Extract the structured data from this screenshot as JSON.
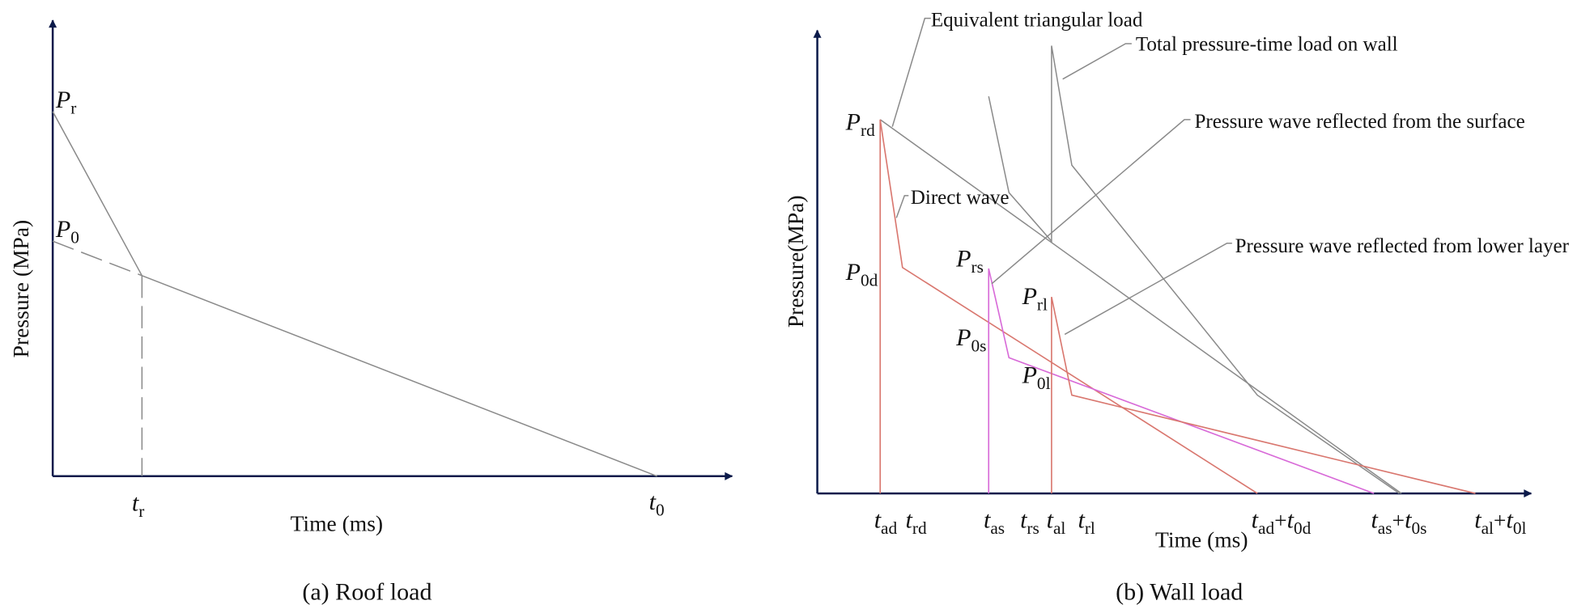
{
  "panel_a": {
    "caption": "(a) Roof load",
    "y_axis_label": "Pressure (MPa)",
    "x_axis_label": "Time (ms)",
    "labels": [
      {
        "base": "P",
        "sub": "r"
      },
      {
        "base": "P",
        "sub": "0"
      },
      {
        "base": "t",
        "sub": "r"
      },
      {
        "base": "t",
        "sub": "0"
      }
    ]
  },
  "panel_b": {
    "caption": "(b) Wall load",
    "y_axis_label": "Pressure(MPa)",
    "x_axis_label": "Time (ms)",
    "annotations": [
      "Equivalent triangular load",
      "Total pressure-time load on wall",
      "Pressure wave reflected from the surface",
      "Direct wave",
      "Pressure wave reflected from lower layer"
    ],
    "pressure_labels": [
      {
        "base": "P",
        "sub": "rd"
      },
      {
        "base": "P",
        "sub": "0d"
      },
      {
        "base": "P",
        "sub": "rs"
      },
      {
        "base": "P",
        "sub": "0s"
      },
      {
        "base": "P",
        "sub": "rl"
      },
      {
        "base": "P",
        "sub": "0l"
      }
    ],
    "time_labels": [
      {
        "base": "t",
        "sub": "ad"
      },
      {
        "base": "t",
        "sub": "rd"
      },
      {
        "base": "t",
        "sub": "as"
      },
      {
        "base": "t",
        "sub": "rs"
      },
      {
        "base": "t",
        "sub": "al"
      },
      {
        "base": "t",
        "sub": "rl"
      },
      {
        "base": "t",
        "sub": "ad",
        "plus": "+",
        "base2": "t",
        "sub2": "0d"
      },
      {
        "base": "t",
        "sub": "as",
        "plus": "+",
        "base2": "t",
        "sub2": "0s"
      },
      {
        "base": "t",
        "sub": "al",
        "plus": "+",
        "base2": "t",
        "sub2": "0l"
      }
    ]
  }
}
